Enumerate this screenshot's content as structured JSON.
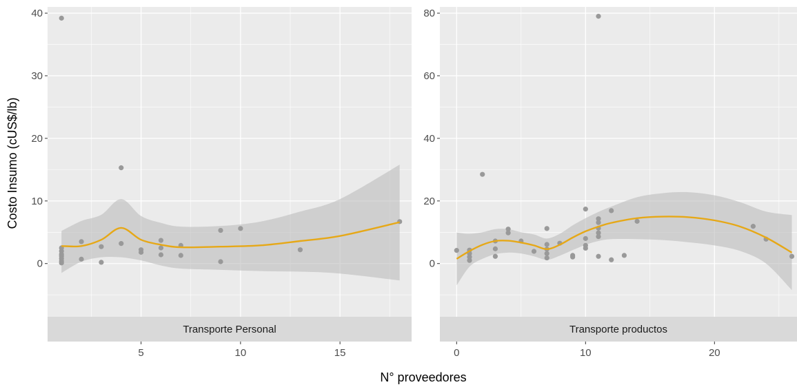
{
  "chart_data": {
    "type": "scatter",
    "xlabel": "N° proveedores",
    "ylabel": "Costo Insumo (cUS$/lb)",
    "colors": {
      "panel_background": "#ebebeb",
      "grid": "#ffffff",
      "strip_background": "#d9d9d9",
      "points": "#999999",
      "smooth_line": "#e6a817",
      "ribbon": "#bdbdbd"
    },
    "legend": "none",
    "facets": [
      {
        "strip_label": "Transporte Personal",
        "xlim": [
          0.3,
          18.6
        ],
        "ylim": [
          -8.5,
          41
        ],
        "xticks": [
          5,
          10,
          15
        ],
        "xtick_labels": [
          "5",
          "10",
          "15"
        ],
        "yticks": [
          0,
          10,
          20,
          30,
          40
        ],
        "ytick_labels": [
          "0",
          "10",
          "20",
          "30",
          "40"
        ],
        "points": [
          {
            "x": 1,
            "y": 39.2
          },
          {
            "x": 1,
            "y": 2.5
          },
          {
            "x": 1,
            "y": 2.0
          },
          {
            "x": 1,
            "y": 1.5
          },
          {
            "x": 1,
            "y": 1.2
          },
          {
            "x": 1,
            "y": 0.8
          },
          {
            "x": 1,
            "y": 0.4
          },
          {
            "x": 1,
            "y": 0.1
          },
          {
            "x": 2,
            "y": 3.5
          },
          {
            "x": 2,
            "y": 0.7
          },
          {
            "x": 3,
            "y": 2.7
          },
          {
            "x": 3,
            "y": 0.2
          },
          {
            "x": 4,
            "y": 15.3
          },
          {
            "x": 4,
            "y": 3.2
          },
          {
            "x": 5,
            "y": 2.2
          },
          {
            "x": 5,
            "y": 1.8
          },
          {
            "x": 6,
            "y": 3.7
          },
          {
            "x": 6,
            "y": 2.5
          },
          {
            "x": 6,
            "y": 1.4
          },
          {
            "x": 7,
            "y": 2.9
          },
          {
            "x": 7,
            "y": 1.3
          },
          {
            "x": 9,
            "y": 5.3
          },
          {
            "x": 9,
            "y": 0.3
          },
          {
            "x": 10,
            "y": 5.6
          },
          {
            "x": 13,
            "y": 2.2
          },
          {
            "x": 18,
            "y": 6.7
          }
        ],
        "smooth": [
          {
            "x": 1,
            "y": 2.8,
            "lo": -1.5,
            "hi": 5.2
          },
          {
            "x": 2,
            "y": 2.8,
            "lo": 0.3,
            "hi": 6.8
          },
          {
            "x": 3,
            "y": 3.8,
            "lo": 1.0,
            "hi": 7.8
          },
          {
            "x": 4,
            "y": 5.7,
            "lo": 1.0,
            "hi": 10.3
          },
          {
            "x": 5,
            "y": 3.8,
            "lo": 0.5,
            "hi": 7.6
          },
          {
            "x": 6,
            "y": 3.0,
            "lo": -0.3,
            "hi": 6.5
          },
          {
            "x": 7,
            "y": 2.6,
            "lo": -0.8,
            "hi": 5.9
          },
          {
            "x": 9,
            "y": 2.7,
            "lo": -1.0,
            "hi": 6.0
          },
          {
            "x": 11,
            "y": 2.9,
            "lo": -1.2,
            "hi": 6.7
          },
          {
            "x": 13,
            "y": 3.6,
            "lo": -1.3,
            "hi": 8.3
          },
          {
            "x": 15,
            "y": 4.4,
            "lo": -1.6,
            "hi": 10.3
          },
          {
            "x": 18,
            "y": 6.6,
            "lo": -2.7,
            "hi": 15.8
          }
        ]
      },
      {
        "strip_label": "Transporte productos",
        "xlim": [
          -1.3,
          26.4
        ],
        "ylim": [
          -17,
          82
        ],
        "xticks": [
          0,
          10,
          20
        ],
        "xtick_labels": [
          "0",
          "10",
          "20"
        ],
        "yticks": [
          0,
          20,
          40,
          60,
          80
        ],
        "ytick_labels": [
          "0",
          "20",
          "40",
          "60",
          "80"
        ],
        "points": [
          {
            "x": 0,
            "y": 4.2
          },
          {
            "x": 1,
            "y": 4.3
          },
          {
            "x": 1,
            "y": 3.2
          },
          {
            "x": 1,
            "y": 2.1
          },
          {
            "x": 1,
            "y": 1.0
          },
          {
            "x": 2,
            "y": 28.5
          },
          {
            "x": 3,
            "y": 7.2
          },
          {
            "x": 3,
            "y": 4.7
          },
          {
            "x": 3,
            "y": 2.3
          },
          {
            "x": 4,
            "y": 11.0
          },
          {
            "x": 4,
            "y": 9.8
          },
          {
            "x": 5,
            "y": 7.2
          },
          {
            "x": 6,
            "y": 3.9
          },
          {
            "x": 7,
            "y": 11.2
          },
          {
            "x": 7,
            "y": 6.1
          },
          {
            "x": 7,
            "y": 4.6
          },
          {
            "x": 7,
            "y": 3.2
          },
          {
            "x": 7,
            "y": 1.8
          },
          {
            "x": 8,
            "y": 6.5
          },
          {
            "x": 9,
            "y": 2.6
          },
          {
            "x": 9,
            "y": 2.1
          },
          {
            "x": 10,
            "y": 17.4
          },
          {
            "x": 10,
            "y": 8.0
          },
          {
            "x": 10,
            "y": 5.8
          },
          {
            "x": 10,
            "y": 4.9
          },
          {
            "x": 11,
            "y": 79.0
          },
          {
            "x": 11,
            "y": 14.3
          },
          {
            "x": 11,
            "y": 13.1
          },
          {
            "x": 11,
            "y": 11.3
          },
          {
            "x": 11,
            "y": 9.8
          },
          {
            "x": 11,
            "y": 8.6
          },
          {
            "x": 11,
            "y": 2.3
          },
          {
            "x": 12,
            "y": 16.9
          },
          {
            "x": 12,
            "y": 1.2
          },
          {
            "x": 13,
            "y": 2.6
          },
          {
            "x": 14,
            "y": 13.5
          },
          {
            "x": 23,
            "y": 11.9
          },
          {
            "x": 24,
            "y": 7.8
          },
          {
            "x": 26,
            "y": 2.3
          }
        ],
        "smooth": [
          {
            "x": 0,
            "y": 1.5,
            "lo": -7.0,
            "hi": 9.9
          },
          {
            "x": 1,
            "y": 4.0,
            "lo": -1.0,
            "hi": 9.5
          },
          {
            "x": 2,
            "y": 6.0,
            "lo": 1.5,
            "hi": 10.0
          },
          {
            "x": 3,
            "y": 7.2,
            "lo": 3.0,
            "hi": 11.0
          },
          {
            "x": 4,
            "y": 7.3,
            "lo": 3.5,
            "hi": 11.0
          },
          {
            "x": 5,
            "y": 6.7,
            "lo": 3.2,
            "hi": 10.0
          },
          {
            "x": 6,
            "y": 5.8,
            "lo": 2.3,
            "hi": 9.3
          },
          {
            "x": 7,
            "y": 4.6,
            "lo": 1.2,
            "hi": 8.0
          },
          {
            "x": 8,
            "y": 6.0,
            "lo": 2.5,
            "hi": 9.5
          },
          {
            "x": 9,
            "y": 8.3,
            "lo": 4.3,
            "hi": 12.2
          },
          {
            "x": 10,
            "y": 10.3,
            "lo": 6.0,
            "hi": 14.5
          },
          {
            "x": 11,
            "y": 11.8,
            "lo": 7.2,
            "hi": 16.5
          },
          {
            "x": 12,
            "y": 13.0,
            "lo": 7.8,
            "hi": 18.2
          },
          {
            "x": 14,
            "y": 14.5,
            "lo": 7.8,
            "hi": 21.2
          },
          {
            "x": 16,
            "y": 15.0,
            "lo": 7.5,
            "hi": 22.5
          },
          {
            "x": 18,
            "y": 14.8,
            "lo": 6.8,
            "hi": 22.8
          },
          {
            "x": 20,
            "y": 13.8,
            "lo": 5.8,
            "hi": 21.8
          },
          {
            "x": 22,
            "y": 11.8,
            "lo": 4.0,
            "hi": 19.6
          },
          {
            "x": 24,
            "y": 8.3,
            "lo": 0.0,
            "hi": 16.6
          },
          {
            "x": 26,
            "y": 3.5,
            "lo": -8.5,
            "hi": 15.5
          }
        ]
      }
    ]
  }
}
